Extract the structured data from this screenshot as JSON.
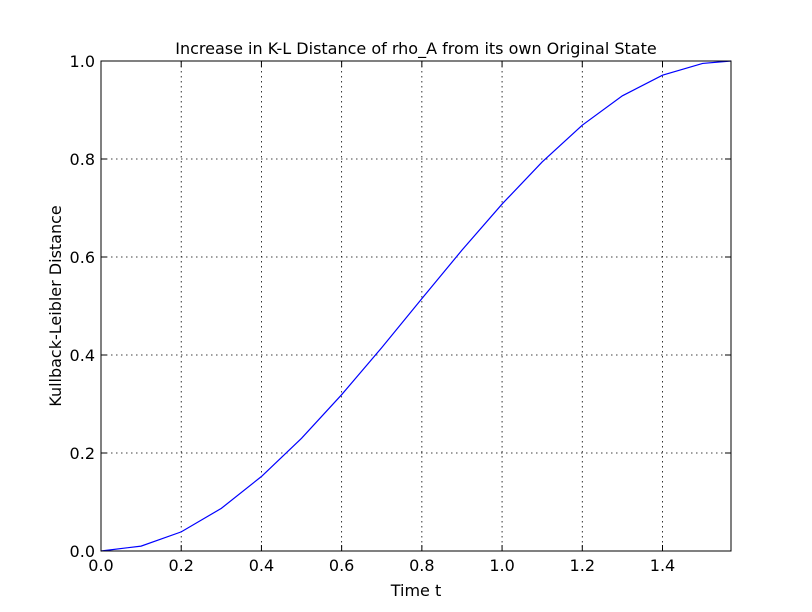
{
  "chart_data": {
    "type": "line",
    "title": "Increase in K-L Distance of rho_A from its own Original State",
    "xlabel": "Time t",
    "ylabel": "Kullback-Leibler Distance",
    "xlim": [
      0,
      1.5708
    ],
    "ylim": [
      0,
      1.0
    ],
    "xticks": [
      "0.0",
      "0.2",
      "0.4",
      "0.6",
      "0.8",
      "1.0",
      "1.2",
      "1.4"
    ],
    "yticks": [
      "0.0",
      "0.2",
      "0.4",
      "0.6",
      "0.8",
      "1.0"
    ],
    "grid": true,
    "line_color": "#0000ff",
    "series": [
      {
        "x": [
          0.0,
          0.1,
          0.2,
          0.3,
          0.4,
          0.5,
          0.6,
          0.7,
          0.8,
          0.9,
          1.0,
          1.1,
          1.2,
          1.3,
          1.4,
          1.5,
          1.5708
        ],
        "y": [
          0.0,
          0.01,
          0.039,
          0.087,
          0.152,
          0.23,
          0.319,
          0.415,
          0.515,
          0.614,
          0.708,
          0.794,
          0.869,
          0.929,
          0.971,
          0.995,
          1.0
        ]
      }
    ]
  }
}
